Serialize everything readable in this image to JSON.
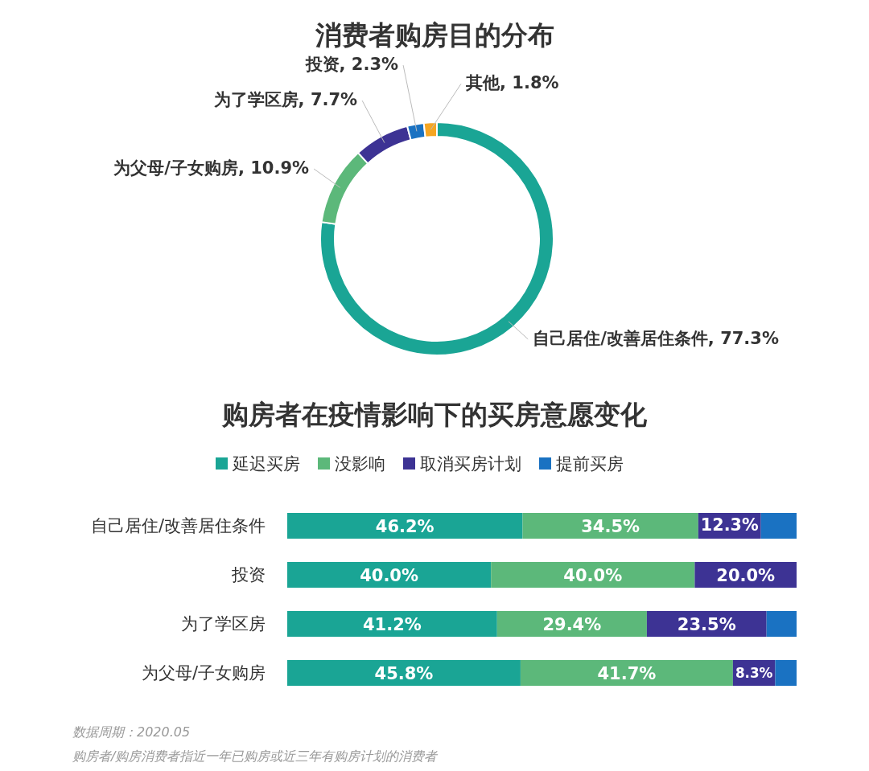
{
  "chart_data": [
    {
      "type": "donut",
      "title": "消费者购房目的分布",
      "categories": [
        "自己居住/改善居住条件",
        "为父母/子女购房",
        "为了学区房",
        "投资",
        "其他"
      ],
      "values": [
        77.3,
        10.9,
        7.7,
        2.3,
        1.8
      ],
      "value_labels": [
        "77.3%",
        "10.9%",
        "7.7%",
        "2.3%",
        "1.8%"
      ],
      "colors": [
        "#1aa595",
        "#5cb87a",
        "#3d3394",
        "#1a72c2",
        "#f5a623"
      ]
    },
    {
      "type": "bar",
      "title": "购房者在疫情影响下的买房意愿变化",
      "orientation": "horizontal",
      "stacked": true,
      "legend": "top",
      "categories": [
        "自己居住/改善居住条件",
        "投资",
        "为了学区房",
        "为父母/子女购房"
      ],
      "series": [
        {
          "name": "延迟买房",
          "color": "#1aa595",
          "values": [
            46.2,
            40.0,
            41.2,
            45.8
          ],
          "value_labels": [
            "46.2%",
            "40.0%",
            "41.2%",
            "45.8%"
          ]
        },
        {
          "name": "没影响",
          "color": "#5cb87a",
          "values": [
            34.5,
            40.0,
            29.4,
            41.7
          ],
          "value_labels": [
            "34.5%",
            "40.0%",
            "29.4%",
            "41.7%"
          ]
        },
        {
          "name": "取消买房计划",
          "color": "#3d3394",
          "values": [
            12.3,
            20.0,
            23.5,
            8.3
          ],
          "value_labels": [
            "12.3%",
            "20.0%",
            "23.5%",
            "8.3%"
          ]
        },
        {
          "name": "提前买房",
          "color": "#1a72c2",
          "values": [
            7.0,
            0,
            5.9,
            4.2
          ],
          "value_labels": [
            null,
            null,
            null,
            null
          ]
        }
      ],
      "annotations": [
        "数据周期：2020.05",
        "购房者/购房消费者指近一年已购房或近三年有购房计划的消费者"
      ]
    }
  ]
}
